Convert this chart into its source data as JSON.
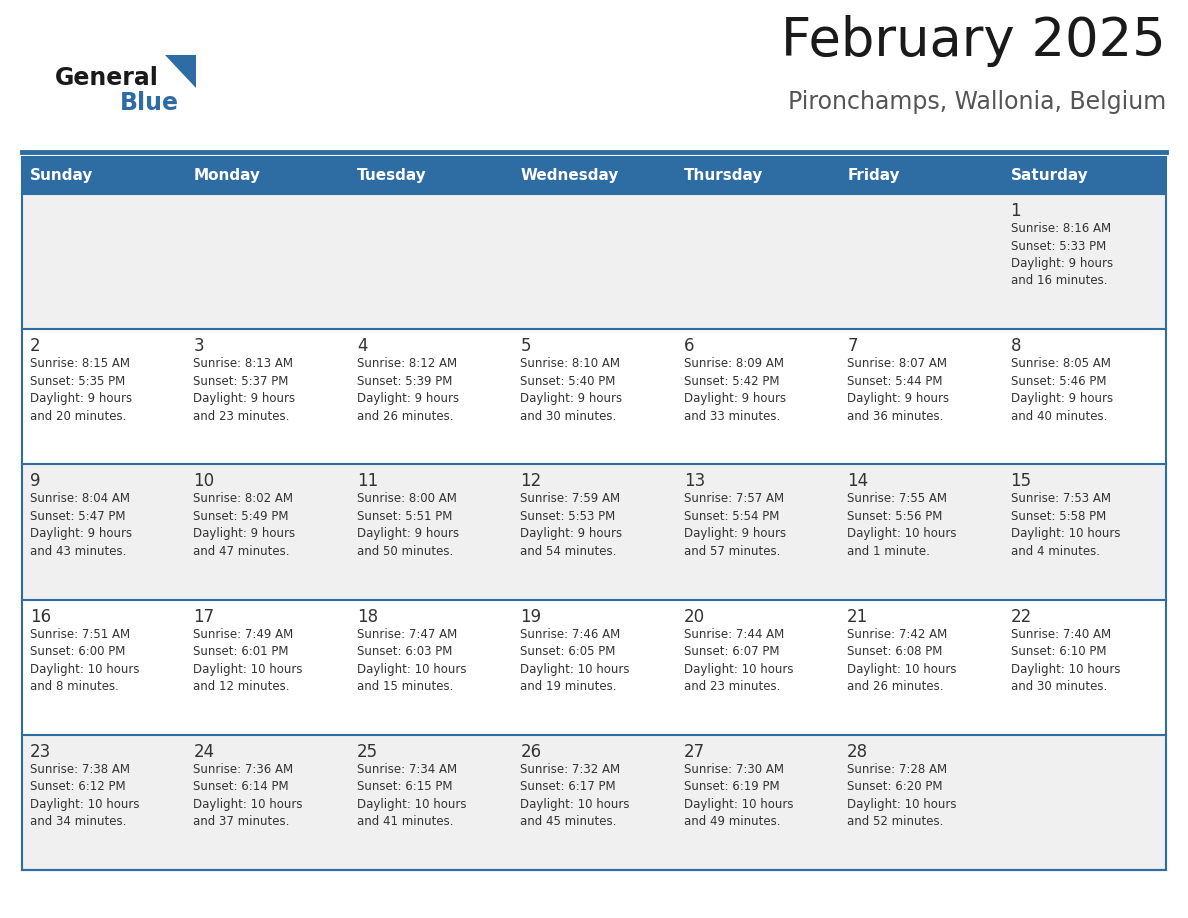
{
  "title": "February 2025",
  "subtitle": "Pironchamps, Wallonia, Belgium",
  "header_color": "#2E6DA4",
  "header_text_color": "#FFFFFF",
  "background_color": "#FFFFFF",
  "cell_alt_color": "#F0F0F0",
  "days_of_week": [
    "Sunday",
    "Monday",
    "Tuesday",
    "Wednesday",
    "Thursday",
    "Friday",
    "Saturday"
  ],
  "calendar_data": [
    [
      {
        "day": "",
        "info": ""
      },
      {
        "day": "",
        "info": ""
      },
      {
        "day": "",
        "info": ""
      },
      {
        "day": "",
        "info": ""
      },
      {
        "day": "",
        "info": ""
      },
      {
        "day": "",
        "info": ""
      },
      {
        "day": "1",
        "info": "Sunrise: 8:16 AM\nSunset: 5:33 PM\nDaylight: 9 hours\nand 16 minutes."
      }
    ],
    [
      {
        "day": "2",
        "info": "Sunrise: 8:15 AM\nSunset: 5:35 PM\nDaylight: 9 hours\nand 20 minutes."
      },
      {
        "day": "3",
        "info": "Sunrise: 8:13 AM\nSunset: 5:37 PM\nDaylight: 9 hours\nand 23 minutes."
      },
      {
        "day": "4",
        "info": "Sunrise: 8:12 AM\nSunset: 5:39 PM\nDaylight: 9 hours\nand 26 minutes."
      },
      {
        "day": "5",
        "info": "Sunrise: 8:10 AM\nSunset: 5:40 PM\nDaylight: 9 hours\nand 30 minutes."
      },
      {
        "day": "6",
        "info": "Sunrise: 8:09 AM\nSunset: 5:42 PM\nDaylight: 9 hours\nand 33 minutes."
      },
      {
        "day": "7",
        "info": "Sunrise: 8:07 AM\nSunset: 5:44 PM\nDaylight: 9 hours\nand 36 minutes."
      },
      {
        "day": "8",
        "info": "Sunrise: 8:05 AM\nSunset: 5:46 PM\nDaylight: 9 hours\nand 40 minutes."
      }
    ],
    [
      {
        "day": "9",
        "info": "Sunrise: 8:04 AM\nSunset: 5:47 PM\nDaylight: 9 hours\nand 43 minutes."
      },
      {
        "day": "10",
        "info": "Sunrise: 8:02 AM\nSunset: 5:49 PM\nDaylight: 9 hours\nand 47 minutes."
      },
      {
        "day": "11",
        "info": "Sunrise: 8:00 AM\nSunset: 5:51 PM\nDaylight: 9 hours\nand 50 minutes."
      },
      {
        "day": "12",
        "info": "Sunrise: 7:59 AM\nSunset: 5:53 PM\nDaylight: 9 hours\nand 54 minutes."
      },
      {
        "day": "13",
        "info": "Sunrise: 7:57 AM\nSunset: 5:54 PM\nDaylight: 9 hours\nand 57 minutes."
      },
      {
        "day": "14",
        "info": "Sunrise: 7:55 AM\nSunset: 5:56 PM\nDaylight: 10 hours\nand 1 minute."
      },
      {
        "day": "15",
        "info": "Sunrise: 7:53 AM\nSunset: 5:58 PM\nDaylight: 10 hours\nand 4 minutes."
      }
    ],
    [
      {
        "day": "16",
        "info": "Sunrise: 7:51 AM\nSunset: 6:00 PM\nDaylight: 10 hours\nand 8 minutes."
      },
      {
        "day": "17",
        "info": "Sunrise: 7:49 AM\nSunset: 6:01 PM\nDaylight: 10 hours\nand 12 minutes."
      },
      {
        "day": "18",
        "info": "Sunrise: 7:47 AM\nSunset: 6:03 PM\nDaylight: 10 hours\nand 15 minutes."
      },
      {
        "day": "19",
        "info": "Sunrise: 7:46 AM\nSunset: 6:05 PM\nDaylight: 10 hours\nand 19 minutes."
      },
      {
        "day": "20",
        "info": "Sunrise: 7:44 AM\nSunset: 6:07 PM\nDaylight: 10 hours\nand 23 minutes."
      },
      {
        "day": "21",
        "info": "Sunrise: 7:42 AM\nSunset: 6:08 PM\nDaylight: 10 hours\nand 26 minutes."
      },
      {
        "day": "22",
        "info": "Sunrise: 7:40 AM\nSunset: 6:10 PM\nDaylight: 10 hours\nand 30 minutes."
      }
    ],
    [
      {
        "day": "23",
        "info": "Sunrise: 7:38 AM\nSunset: 6:12 PM\nDaylight: 10 hours\nand 34 minutes."
      },
      {
        "day": "24",
        "info": "Sunrise: 7:36 AM\nSunset: 6:14 PM\nDaylight: 10 hours\nand 37 minutes."
      },
      {
        "day": "25",
        "info": "Sunrise: 7:34 AM\nSunset: 6:15 PM\nDaylight: 10 hours\nand 41 minutes."
      },
      {
        "day": "26",
        "info": "Sunrise: 7:32 AM\nSunset: 6:17 PM\nDaylight: 10 hours\nand 45 minutes."
      },
      {
        "day": "27",
        "info": "Sunrise: 7:30 AM\nSunset: 6:19 PM\nDaylight: 10 hours\nand 49 minutes."
      },
      {
        "day": "28",
        "info": "Sunrise: 7:28 AM\nSunset: 6:20 PM\nDaylight: 10 hours\nand 52 minutes."
      },
      {
        "day": "",
        "info": ""
      }
    ]
  ],
  "logo_text_general": "General",
  "logo_text_blue": "Blue",
  "title_fontsize": 38,
  "subtitle_fontsize": 17,
  "header_fontsize": 11,
  "day_num_fontsize": 12,
  "info_fontsize": 8.5
}
